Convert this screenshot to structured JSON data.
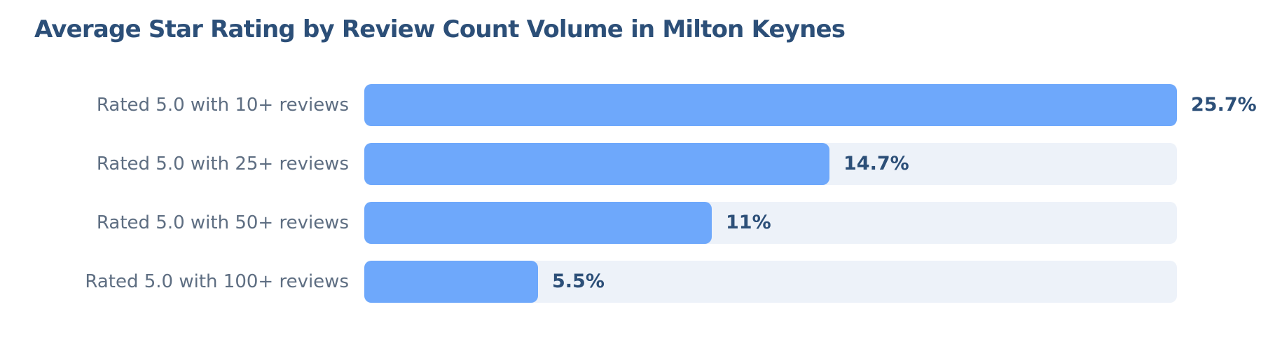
{
  "chart_data": {
    "type": "bar",
    "orientation": "horizontal",
    "title": "Average Star Rating by Review Count Volume in Milton Keynes",
    "categories": [
      "Rated 5.0 with 10+ reviews",
      "Rated 5.0 with 25+ reviews",
      "Rated 5.0 with 50+ reviews",
      "Rated 5.0 with 100+ reviews"
    ],
    "values": [
      25.7,
      14.7,
      11,
      5.5
    ],
    "value_labels": [
      "25.7%",
      "14.7%",
      "11%",
      "5.5%"
    ],
    "xlim": [
      0,
      25.7
    ],
    "grid": false,
    "legend": "none",
    "colors": {
      "bar": "#6ea8fb",
      "track": "#edf2f9",
      "title": "#2c4f78",
      "category_label": "#5e6e82",
      "value_label": "#2c4f78"
    }
  }
}
